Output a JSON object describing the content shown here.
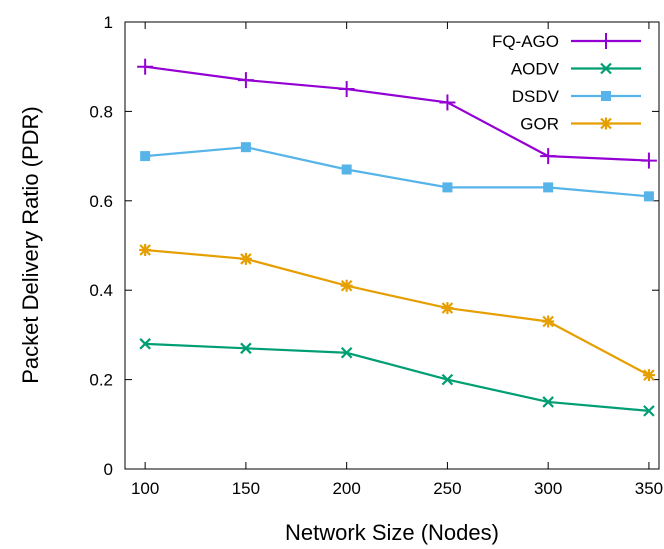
{
  "chart_data": {
    "type": "line",
    "xlabel": "Network Size (Nodes)",
    "ylabel": "Packet Delivery Ratio (PDR)",
    "x": [
      100,
      150,
      200,
      250,
      300,
      350
    ],
    "xlim": [
      90,
      355
    ],
    "ylim": [
      0,
      1
    ],
    "x_ticks": [
      "100",
      "150",
      "200",
      "250",
      "300",
      "350"
    ],
    "y_ticks": [
      "0",
      "0.2",
      "0.4",
      "0.6",
      "0.8",
      "1"
    ],
    "y_tick_values": [
      0,
      0.2,
      0.4,
      0.6,
      0.8,
      1
    ],
    "grid": false,
    "legend_position": "top-right",
    "series": [
      {
        "name": "FQ-AGO",
        "color": "#9400d3",
        "marker": "plus",
        "values": [
          0.9,
          0.87,
          0.85,
          0.82,
          0.7,
          0.69
        ]
      },
      {
        "name": "AODV",
        "color": "#009e73",
        "marker": "cross",
        "values": [
          0.28,
          0.27,
          0.26,
          0.2,
          0.15,
          0.13
        ]
      },
      {
        "name": "DSDV",
        "color": "#56b4e9",
        "marker": "square",
        "values": [
          0.7,
          0.72,
          0.67,
          0.63,
          0.63,
          0.61
        ]
      },
      {
        "name": "GOR",
        "color": "#e69f00",
        "marker": "asterisk",
        "values": [
          0.49,
          0.47,
          0.41,
          0.36,
          0.33,
          0.21
        ]
      }
    ]
  }
}
